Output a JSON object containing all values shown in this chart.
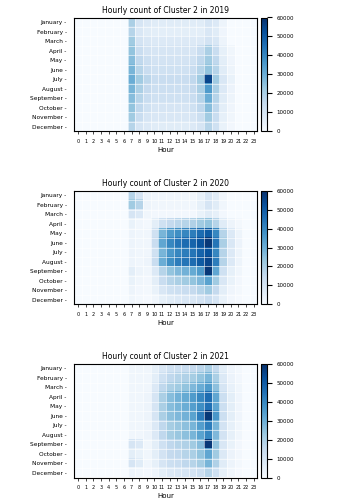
{
  "months": [
    "January",
    "February",
    "March",
    "April",
    "May",
    "June",
    "July",
    "August",
    "September",
    "October",
    "November",
    "December"
  ],
  "hours": [
    0,
    1,
    2,
    3,
    4,
    5,
    6,
    7,
    8,
    9,
    10,
    11,
    12,
    13,
    14,
    15,
    16,
    17,
    18,
    19,
    20,
    21,
    22,
    23
  ],
  "titles": [
    "Hourly count of Cluster 2 in 2019",
    "Hourly count of Cluster 2 in 2020",
    "Hourly count of Cluster 2 in 2021"
  ],
  "vmin": 0,
  "vmax": 60000,
  "cmap": "Blues",
  "xlabel": "Hour",
  "colorbar_ticks": [
    0,
    10000,
    20000,
    30000,
    40000,
    50000,
    60000
  ],
  "data_2019": [
    [
      0,
      0,
      0,
      0,
      0,
      0,
      0,
      20000,
      10000,
      8000,
      7000,
      7000,
      7000,
      7000,
      7000,
      7000,
      7000,
      10000,
      8000,
      3000,
      0,
      0,
      0,
      0
    ],
    [
      0,
      0,
      0,
      0,
      0,
      0,
      0,
      18000,
      9000,
      7000,
      6000,
      6000,
      6000,
      6000,
      6000,
      6000,
      6000,
      9000,
      7000,
      2500,
      0,
      0,
      0,
      0
    ],
    [
      0,
      0,
      0,
      0,
      0,
      0,
      0,
      22000,
      11000,
      9000,
      8000,
      8000,
      8000,
      8000,
      8000,
      8000,
      8000,
      11000,
      9000,
      3000,
      0,
      0,
      0,
      0
    ],
    [
      0,
      0,
      0,
      0,
      0,
      0,
      0,
      24000,
      14000,
      11000,
      10000,
      10000,
      10000,
      10000,
      10000,
      10000,
      14000,
      20000,
      14000,
      5000,
      2000,
      0,
      0,
      0
    ],
    [
      0,
      0,
      0,
      0,
      0,
      0,
      0,
      26000,
      16000,
      13000,
      11000,
      11000,
      11000,
      11000,
      11000,
      12000,
      16000,
      22000,
      16000,
      6000,
      2500,
      0,
      0,
      0
    ],
    [
      0,
      0,
      0,
      0,
      0,
      0,
      0,
      28000,
      18000,
      14000,
      12000,
      12000,
      12000,
      12000,
      12000,
      14000,
      18000,
      24000,
      18000,
      7000,
      3000,
      0,
      0,
      0
    ],
    [
      0,
      0,
      0,
      0,
      0,
      0,
      0,
      30000,
      22000,
      17000,
      14000,
      14000,
      14000,
      14000,
      14000,
      16000,
      22000,
      55000,
      22000,
      9000,
      4000,
      0,
      0,
      0
    ],
    [
      0,
      0,
      0,
      0,
      0,
      0,
      0,
      28000,
      20000,
      15000,
      13000,
      13000,
      13000,
      13000,
      13000,
      15000,
      20000,
      35000,
      20000,
      8000,
      3500,
      0,
      0,
      0
    ],
    [
      0,
      0,
      0,
      0,
      0,
      0,
      0,
      26000,
      18000,
      14000,
      12000,
      12000,
      12000,
      12000,
      12000,
      14000,
      18000,
      30000,
      18000,
      7000,
      3000,
      0,
      0,
      0
    ],
    [
      0,
      0,
      0,
      0,
      0,
      0,
      0,
      24000,
      16000,
      12000,
      10000,
      10000,
      10000,
      10000,
      10000,
      12000,
      16000,
      26000,
      16000,
      6000,
      2500,
      0,
      0,
      0
    ],
    [
      0,
      0,
      0,
      0,
      0,
      0,
      0,
      22000,
      14000,
      10000,
      9000,
      9000,
      9000,
      9000,
      9000,
      10000,
      13000,
      22000,
      14000,
      5000,
      2000,
      0,
      0,
      0
    ],
    [
      0,
      0,
      0,
      0,
      0,
      0,
      0,
      18000,
      10000,
      8000,
      7000,
      7000,
      7000,
      7000,
      7000,
      8000,
      10000,
      18000,
      12000,
      4000,
      1500,
      0,
      0,
      0
    ]
  ],
  "data_2020": [
    [
      0,
      0,
      0,
      0,
      0,
      0,
      0,
      18000,
      10000,
      3000,
      2000,
      2000,
      2000,
      2000,
      2000,
      2000,
      5000,
      10000,
      7000,
      2000,
      0,
      0,
      0,
      0
    ],
    [
      0,
      0,
      0,
      0,
      0,
      0,
      0,
      22000,
      18000,
      3000,
      2000,
      2000,
      2000,
      2000,
      2000,
      2000,
      5000,
      10000,
      7000,
      2000,
      0,
      0,
      0,
      0
    ],
    [
      0,
      0,
      0,
      0,
      0,
      0,
      0,
      10000,
      8000,
      2000,
      1500,
      1500,
      1500,
      1500,
      1500,
      1500,
      4000,
      7000,
      5000,
      1500,
      0,
      0,
      0,
      0
    ],
    [
      0,
      0,
      0,
      0,
      0,
      0,
      0,
      4000,
      2000,
      1000,
      6000,
      12000,
      15000,
      17000,
      18000,
      19000,
      22000,
      24000,
      18000,
      7000,
      3000,
      1000,
      0,
      0
    ],
    [
      0,
      0,
      0,
      0,
      0,
      0,
      0,
      3000,
      2000,
      2000,
      12000,
      28000,
      35000,
      38000,
      40000,
      42000,
      46000,
      50000,
      40000,
      18000,
      8000,
      3000,
      0,
      0
    ],
    [
      0,
      0,
      0,
      0,
      0,
      0,
      0,
      3000,
      2000,
      2000,
      14000,
      32000,
      40000,
      44000,
      46000,
      48000,
      52000,
      58000,
      44000,
      20000,
      9000,
      3500,
      0,
      0
    ],
    [
      0,
      0,
      0,
      0,
      0,
      0,
      0,
      3000,
      2000,
      2000,
      12000,
      28000,
      36000,
      40000,
      42000,
      44000,
      48000,
      52000,
      40000,
      18000,
      8000,
      3000,
      0,
      0
    ],
    [
      0,
      0,
      0,
      0,
      0,
      0,
      0,
      3000,
      2000,
      3000,
      14000,
      30000,
      38000,
      42000,
      44000,
      46000,
      50000,
      55000,
      42000,
      18000,
      8000,
      3000,
      0,
      0
    ],
    [
      0,
      0,
      0,
      0,
      0,
      0,
      0,
      6000,
      3000,
      2000,
      8000,
      18000,
      24000,
      27000,
      29000,
      31000,
      35000,
      58000,
      32000,
      12000,
      5000,
      2000,
      0,
      0
    ],
    [
      0,
      0,
      0,
      0,
      0,
      0,
      0,
      4000,
      2000,
      1500,
      6000,
      14000,
      18000,
      20000,
      22000,
      24000,
      27000,
      33000,
      22000,
      9000,
      4000,
      1500,
      0,
      0
    ],
    [
      0,
      0,
      0,
      0,
      0,
      0,
      0,
      3000,
      1500,
      1000,
      4000,
      9000,
      12000,
      13000,
      14000,
      15000,
      18000,
      22000,
      15000,
      6000,
      2500,
      1000,
      0,
      0
    ],
    [
      0,
      0,
      0,
      0,
      0,
      0,
      0,
      2000,
      1000,
      500,
      2000,
      5000,
      7000,
      8000,
      9000,
      9000,
      11000,
      14000,
      10000,
      4000,
      1500,
      500,
      0,
      0
    ]
  ],
  "data_2021": [
    [
      0,
      0,
      0,
      0,
      0,
      0,
      0,
      2000,
      2000,
      2000,
      5000,
      9000,
      12000,
      13000,
      14000,
      15000,
      17000,
      20000,
      15000,
      6000,
      2500,
      1000,
      0,
      0
    ],
    [
      0,
      0,
      0,
      0,
      0,
      0,
      0,
      2000,
      2000,
      2000,
      6000,
      12000,
      16000,
      18000,
      19000,
      21000,
      24000,
      28000,
      20000,
      8000,
      3500,
      1500,
      0,
      0
    ],
    [
      0,
      0,
      0,
      0,
      0,
      0,
      0,
      2000,
      2000,
      2000,
      8000,
      16000,
      20000,
      22000,
      24000,
      27000,
      30000,
      35000,
      25000,
      10000,
      4500,
      2000,
      0,
      0
    ],
    [
      0,
      0,
      0,
      0,
      0,
      0,
      0,
      2000,
      2000,
      3000,
      10000,
      20000,
      26000,
      29000,
      31000,
      35000,
      40000,
      46000,
      32000,
      13000,
      6000,
      2500,
      0,
      0
    ],
    [
      0,
      0,
      0,
      0,
      0,
      0,
      0,
      2000,
      2000,
      3000,
      10000,
      20000,
      26000,
      28000,
      30000,
      34000,
      38000,
      45000,
      32000,
      13000,
      6000,
      2500,
      0,
      0
    ],
    [
      0,
      0,
      0,
      0,
      0,
      0,
      0,
      2000,
      2000,
      3000,
      10000,
      20000,
      25000,
      27000,
      29000,
      33000,
      42000,
      58000,
      36000,
      13000,
      6000,
      2500,
      0,
      0
    ],
    [
      0,
      0,
      0,
      0,
      0,
      0,
      0,
      2000,
      2000,
      3000,
      8000,
      16000,
      21000,
      23000,
      25000,
      28000,
      34000,
      42000,
      28000,
      11000,
      5000,
      2000,
      0,
      0
    ],
    [
      0,
      0,
      0,
      0,
      0,
      0,
      0,
      2000,
      2000,
      3000,
      8000,
      16000,
      21000,
      23000,
      25000,
      28000,
      33000,
      40000,
      27000,
      11000,
      5000,
      2000,
      0,
      0
    ],
    [
      0,
      0,
      0,
      0,
      0,
      0,
      0,
      10000,
      8000,
      2000,
      6000,
      12000,
      16000,
      18000,
      19000,
      22000,
      26000,
      58000,
      24000,
      9000,
      4000,
      1500,
      0,
      0
    ],
    [
      0,
      0,
      0,
      0,
      0,
      0,
      0,
      6000,
      4000,
      2000,
      6000,
      11000,
      15000,
      16000,
      18000,
      20000,
      24000,
      32000,
      22000,
      8000,
      3500,
      1500,
      0,
      0
    ],
    [
      0,
      0,
      0,
      0,
      0,
      0,
      0,
      10000,
      7000,
      2000,
      5000,
      10000,
      13000,
      14000,
      16000,
      18000,
      21000,
      28000,
      19000,
      7000,
      3000,
      1000,
      0,
      0
    ],
    [
      0,
      0,
      0,
      0,
      0,
      0,
      0,
      3000,
      2000,
      1500,
      3000,
      6000,
      8000,
      9000,
      10000,
      11000,
      13000,
      18000,
      12000,
      5000,
      2000,
      500,
      0,
      0
    ]
  ]
}
